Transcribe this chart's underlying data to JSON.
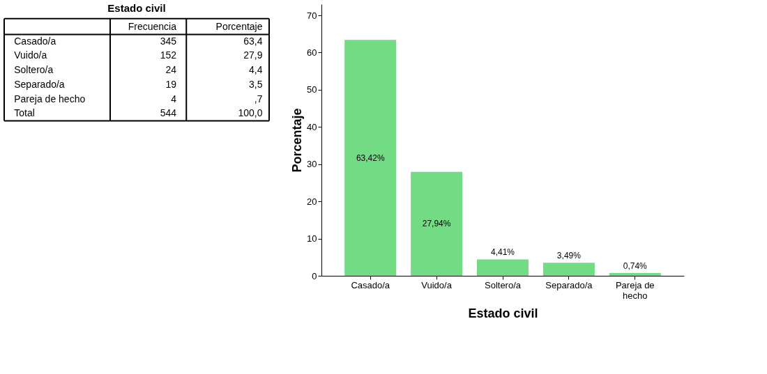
{
  "chart_data": [
    {
      "type": "other",
      "title": "Estado civil",
      "annotations": [
        "Frecuencia",
        "Porcentaje",
        "Casado/a",
        "345",
        "63,4",
        "Vuido/a",
        "152",
        "27,9",
        "Soltero/a",
        "24",
        "4,4",
        "Separado/a",
        "19",
        "3,5",
        "Pareja de hecho",
        "4",
        ",7",
        "Total",
        "544",
        "100,0"
      ]
    },
    {
      "type": "bar",
      "xlabel": "Estado civil",
      "ylabel": "Porcentaje",
      "categories": [
        "Casado/a",
        "Vuido/a",
        "Soltero/a",
        "Separado/a",
        "Pareja de hecho"
      ],
      "values": [
        63.42,
        27.94,
        4.41,
        3.49,
        0.74
      ],
      "value_labels": [
        "63,42%",
        "27,94%",
        "4,41%",
        "3,49%",
        "0,74%"
      ],
      "color": "#72dc85",
      "ylim": [
        0,
        73
      ],
      "yticks": [
        0,
        10,
        20,
        30,
        40,
        50,
        60,
        70
      ],
      "grid": false
    }
  ]
}
